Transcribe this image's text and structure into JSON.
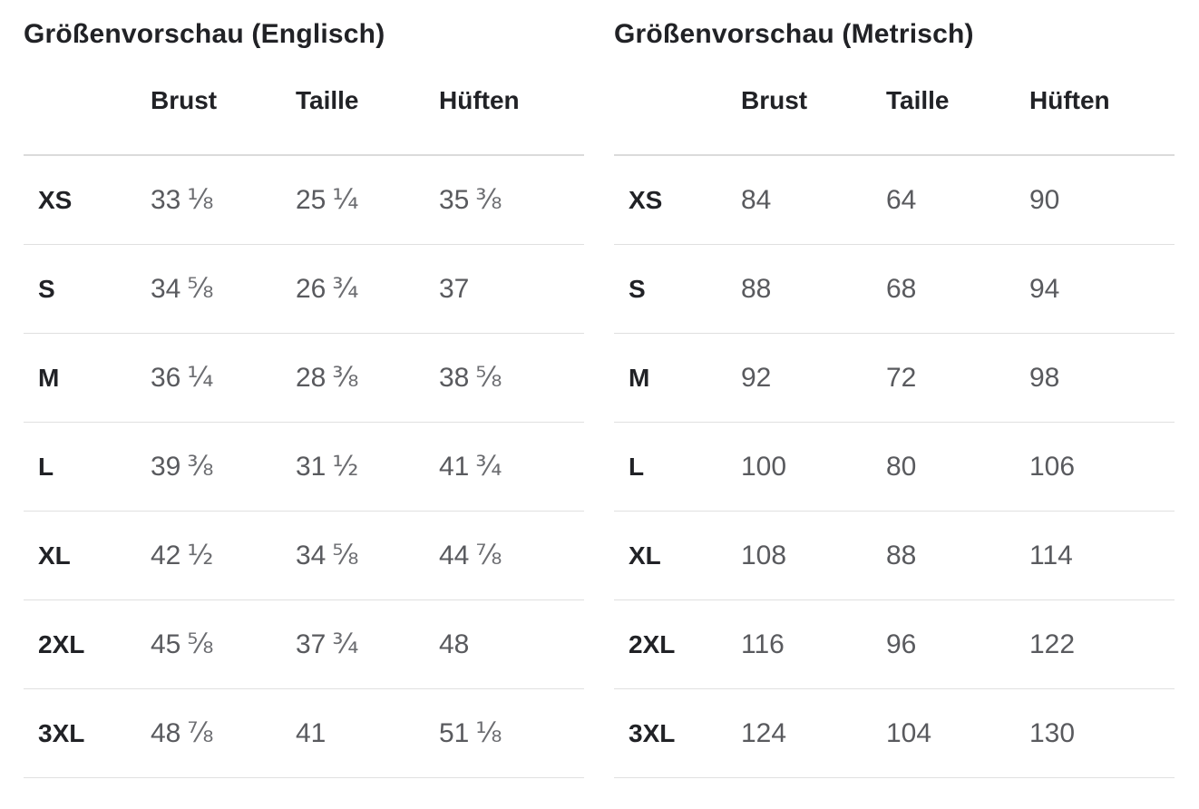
{
  "colors": {
    "background": "#ffffff",
    "heading_text": "#212226",
    "value_text": "#595a5e",
    "header_border": "#dbdbdb",
    "row_border": "#e0e0e0"
  },
  "tables": [
    {
      "title": "Größenvorschau (Englisch)",
      "columns": [
        "Brust",
        "Taille",
        "Hüften"
      ],
      "rows": [
        {
          "label": "XS",
          "values": [
            {
              "n": "33",
              "f": "⅛"
            },
            {
              "n": "25",
              "f": "¼"
            },
            {
              "n": "35",
              "f": "⅜"
            }
          ]
        },
        {
          "label": "S",
          "values": [
            {
              "n": "34",
              "f": "⅝"
            },
            {
              "n": "26",
              "f": "¾"
            },
            {
              "n": "37"
            }
          ]
        },
        {
          "label": "M",
          "values": [
            {
              "n": "36",
              "f": "¼"
            },
            {
              "n": "28",
              "f": "⅜"
            },
            {
              "n": "38",
              "f": "⅝"
            }
          ]
        },
        {
          "label": "L",
          "values": [
            {
              "n": "39",
              "f": "⅜"
            },
            {
              "n": "31",
              "f": "½"
            },
            {
              "n": "41",
              "f": "¾"
            }
          ]
        },
        {
          "label": "XL",
          "values": [
            {
              "n": "42",
              "f": "½"
            },
            {
              "n": "34",
              "f": "⅝"
            },
            {
              "n": "44",
              "f": "⅞"
            }
          ]
        },
        {
          "label": "2XL",
          "values": [
            {
              "n": "45",
              "f": "⅝"
            },
            {
              "n": "37",
              "f": "¾"
            },
            {
              "n": "48"
            }
          ]
        },
        {
          "label": "3XL",
          "values": [
            {
              "n": "48",
              "f": "⅞"
            },
            {
              "n": "41"
            },
            {
              "n": "51",
              "f": "⅛"
            }
          ]
        }
      ]
    },
    {
      "title": "Größenvorschau (Metrisch)",
      "columns": [
        "Brust",
        "Taille",
        "Hüften"
      ],
      "rows": [
        {
          "label": "XS",
          "values": [
            {
              "n": "84"
            },
            {
              "n": "64"
            },
            {
              "n": "90"
            }
          ]
        },
        {
          "label": "S",
          "values": [
            {
              "n": "88"
            },
            {
              "n": "68"
            },
            {
              "n": "94"
            }
          ]
        },
        {
          "label": "M",
          "values": [
            {
              "n": "92"
            },
            {
              "n": "72"
            },
            {
              "n": "98"
            }
          ]
        },
        {
          "label": "L",
          "values": [
            {
              "n": "100"
            },
            {
              "n": "80"
            },
            {
              "n": "106"
            }
          ]
        },
        {
          "label": "XL",
          "values": [
            {
              "n": "108"
            },
            {
              "n": "88"
            },
            {
              "n": "114"
            }
          ]
        },
        {
          "label": "2XL",
          "values": [
            {
              "n": "116"
            },
            {
              "n": "96"
            },
            {
              "n": "122"
            }
          ]
        },
        {
          "label": "3XL",
          "values": [
            {
              "n": "124"
            },
            {
              "n": "104"
            },
            {
              "n": "130"
            }
          ]
        }
      ]
    }
  ]
}
